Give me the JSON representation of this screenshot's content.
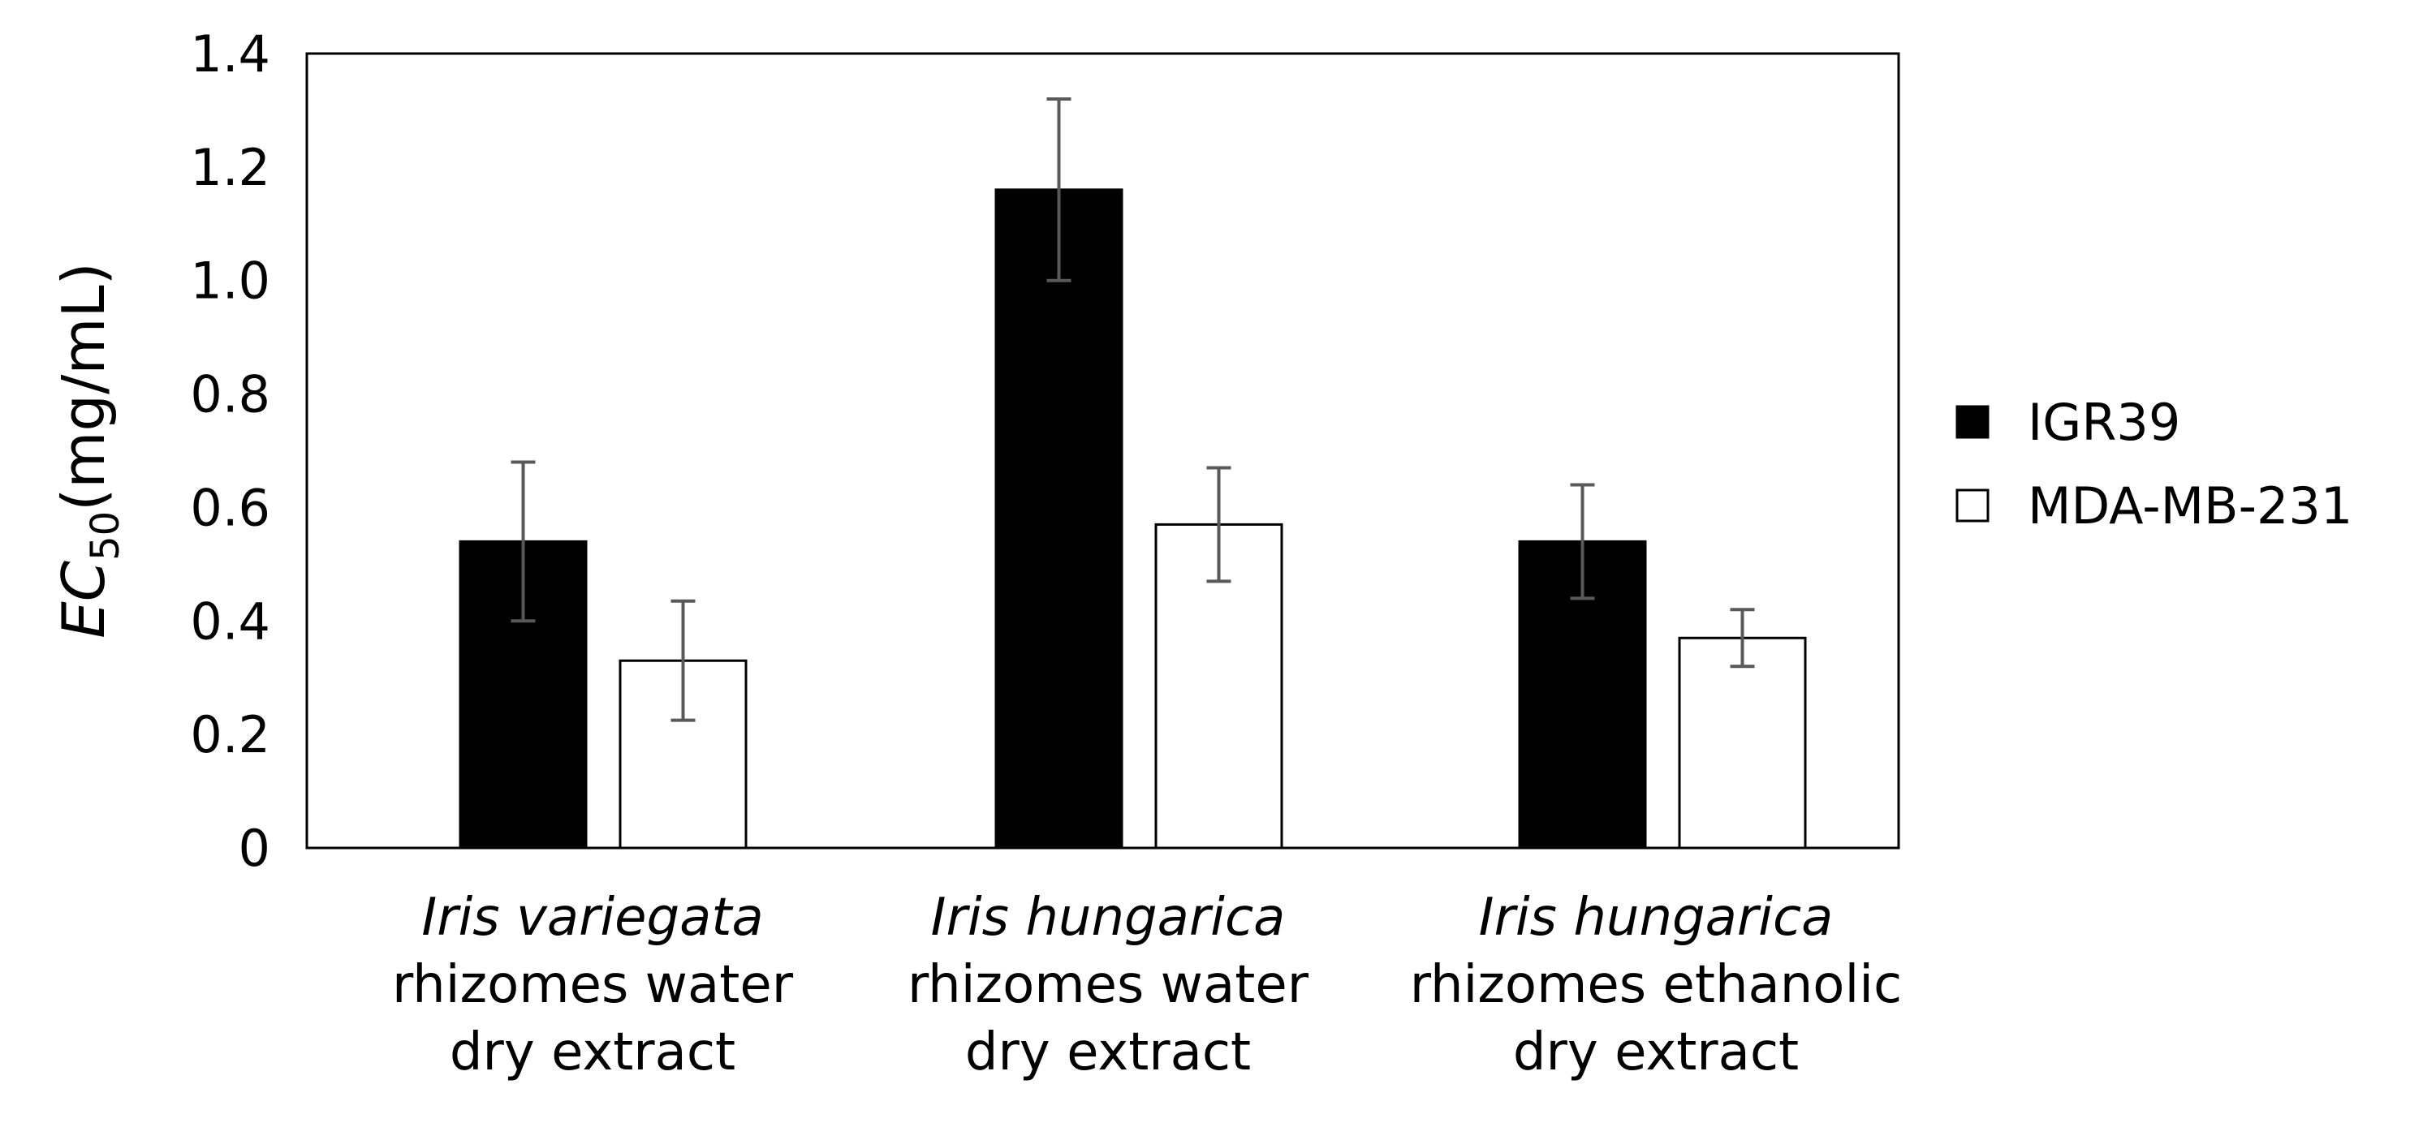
{
  "chart_data": {
    "type": "bar",
    "ylabel": {
      "main": "EC",
      "subscript": "50",
      "unit": "(mg/mL)"
    },
    "ylim": [
      0,
      1.4
    ],
    "yticks": [
      "0",
      "0.2",
      "0.4",
      "0.6",
      "0.8",
      "1.0",
      "1.2",
      "1.4"
    ],
    "categories": [
      {
        "species": "Iris variegata",
        "lines": [
          "rhizomes water",
          "dry extract"
        ]
      },
      {
        "species": "Iris hungarica",
        "lines": [
          "rhizomes water",
          "dry extract"
        ]
      },
      {
        "species": "Iris hungarica",
        "lines": [
          "rhizomes ethanolic",
          "dry extract"
        ]
      }
    ],
    "series": [
      {
        "name": "IGR39",
        "fill": "#000000",
        "values": [
          0.54,
          1.16,
          0.54
        ],
        "errors": [
          0.14,
          0.16,
          0.1
        ]
      },
      {
        "name": "MDA-MB-231",
        "fill": "#ffffff",
        "values": [
          0.33,
          0.57,
          0.37
        ],
        "errors": [
          0.105,
          0.1,
          0.05
        ]
      }
    ],
    "grid": false,
    "legend_position": "right"
  }
}
